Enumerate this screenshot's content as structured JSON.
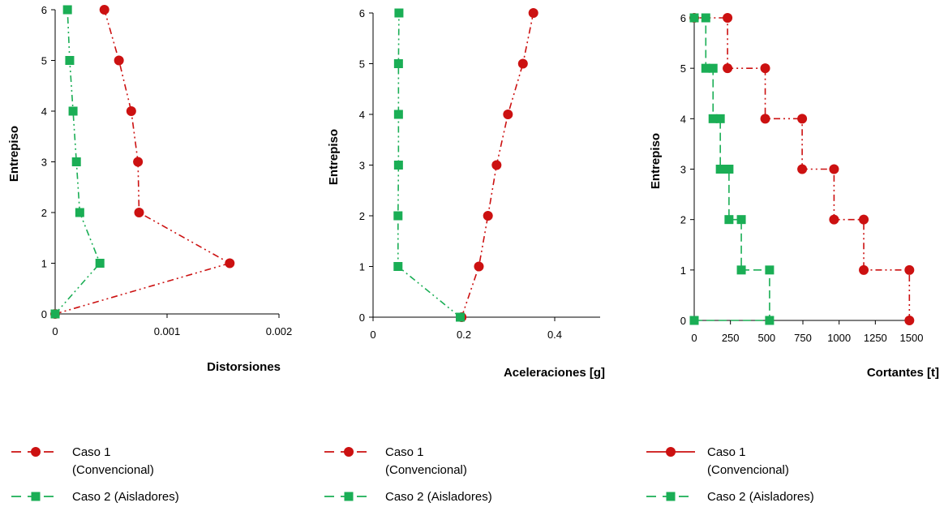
{
  "colors": {
    "caso1": "#cc1111",
    "caso2": "#1aae55",
    "axis": "#000000"
  },
  "chart_data": [
    {
      "type": "line",
      "ylabel": "Entrepiso",
      "xlabel": "Distorsiones",
      "xlim": [
        0,
        0.002
      ],
      "ylim": [
        0,
        6
      ],
      "xticks": [
        0,
        0.001,
        0.002
      ],
      "xtick_labels": [
        "0",
        "0.001",
        "0.002"
      ],
      "yticks": [
        0,
        1,
        2,
        3,
        4,
        5,
        6
      ],
      "ytick_labels": [
        "0",
        "1",
        "2",
        "3",
        "4",
        "5",
        "6"
      ],
      "series": [
        {
          "name": "Caso 1 (Convencional)",
          "dash": "8,4,2,4,2,4",
          "marker": "circle",
          "points": [
            [
              0.0,
              0
            ],
            [
              0.00156,
              1
            ],
            [
              0.00075,
              2
            ],
            [
              0.00074,
              3
            ],
            [
              0.00068,
              4
            ],
            [
              0.00057,
              5
            ],
            [
              0.00044,
              6
            ]
          ]
        },
        {
          "name": "Caso 2 (Aisladores)",
          "dash": "8,4,2,4,2,4",
          "marker": "square",
          "points": [
            [
              0.0,
              0
            ],
            [
              0.0004,
              1
            ],
            [
              0.00022,
              2
            ],
            [
              0.00019,
              3
            ],
            [
              0.00016,
              4
            ],
            [
              0.00013,
              5
            ],
            [
              0.00011,
              6
            ]
          ]
        }
      ],
      "legend": [
        {
          "line1": "Caso 1",
          "line2": "(Convencional)"
        },
        {
          "line1": "Caso 2 (Aisladores)",
          "line2": ""
        }
      ]
    },
    {
      "type": "line",
      "ylabel": "Entrepiso",
      "xlabel": "Aceleraciones [g]",
      "xlim": [
        0,
        0.5
      ],
      "ylim": [
        0,
        6
      ],
      "xticks": [
        0,
        0.2,
        0.4
      ],
      "xtick_labels": [
        "0",
        "0.2",
        "0.4"
      ],
      "yticks": [
        0,
        1,
        2,
        3,
        4,
        5,
        6
      ],
      "ytick_labels": [
        "0",
        "1",
        "2",
        "3",
        "4",
        "5",
        "6"
      ],
      "series": [
        {
          "name": "Caso 1 (Convencional)",
          "dash": "8,4,2,4,2,4",
          "marker": "circle",
          "points": [
            [
              0.195,
              0
            ],
            [
              0.233,
              1
            ],
            [
              0.253,
              2
            ],
            [
              0.272,
              3
            ],
            [
              0.297,
              4
            ],
            [
              0.33,
              5
            ],
            [
              0.353,
              6
            ]
          ]
        },
        {
          "name": "Caso 2 (Aisladores)",
          "dash": "8,4,2,4,2,4",
          "marker": "square",
          "points": [
            [
              0.192,
              0
            ],
            [
              0.055,
              1
            ],
            [
              0.055,
              2
            ],
            [
              0.056,
              3
            ],
            [
              0.056,
              4
            ],
            [
              0.056,
              5
            ],
            [
              0.057,
              6
            ]
          ]
        }
      ],
      "legend": [
        {
          "line1": "Caso 1",
          "line2": "(Convencional)"
        },
        {
          "line1": "Caso 2 (Aisladores)",
          "line2": ""
        }
      ]
    },
    {
      "type": "line",
      "ylabel": "Entrepiso",
      "xlabel": "Cortantes [t]",
      "xlim": [
        0,
        1500
      ],
      "ylim": [
        0,
        6
      ],
      "xticks": [
        0,
        250,
        500,
        750,
        1000,
        1250,
        1500
      ],
      "xtick_labels": [
        "0",
        "250",
        "500",
        "750",
        "1000",
        "1250",
        "1500"
      ],
      "yticks": [
        0,
        1,
        2,
        3,
        4,
        5,
        6
      ],
      "ytick_labels": [
        "0",
        "1",
        "2",
        "3",
        "4",
        "5",
        "6"
      ],
      "series": [
        {
          "name": "Caso 1 (Convencional)",
          "dash": "8,4,2,4,2,4",
          "marker": "circle",
          "step": true,
          "points": [
            [
              1485,
              0
            ],
            [
              1485,
              1
            ],
            [
              1170,
              1
            ],
            [
              1170,
              2
            ],
            [
              965,
              2
            ],
            [
              965,
              3
            ],
            [
              745,
              3
            ],
            [
              745,
              4
            ],
            [
              490,
              4
            ],
            [
              490,
              5
            ],
            [
              230,
              5
            ],
            [
              230,
              6
            ],
            [
              0,
              6
            ]
          ]
        },
        {
          "name": "Caso 2 (Aisladores)",
          "dash": "10,5",
          "marker": "square",
          "step": true,
          "points": [
            [
              0,
              0
            ],
            [
              520,
              0
            ],
            [
              520,
              1
            ],
            [
              325,
              1
            ],
            [
              325,
              2
            ],
            [
              240,
              2
            ],
            [
              240,
              3
            ],
            [
              180,
              3
            ],
            [
              180,
              4
            ],
            [
              130,
              4
            ],
            [
              130,
              5
            ],
            [
              80,
              5
            ],
            [
              80,
              6
            ],
            [
              0,
              6
            ]
          ]
        }
      ],
      "legend": [
        {
          "line1": "Caso 1",
          "line2": "(Convencional)"
        },
        {
          "line1": "Caso 2 (Aisladores)",
          "line2": ""
        }
      ]
    }
  ]
}
